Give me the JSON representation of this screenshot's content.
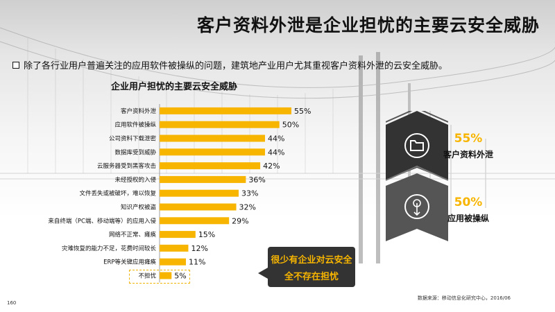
{
  "title": "客户资料外泄是企业担忧的主要云安全威胁",
  "subtitle": "除了各行业用户普遍关注的应用软件被操纵的问题，建筑地产业用户尤其重视客户资料外泄的云安全威胁。",
  "chart_data": {
    "type": "bar",
    "orientation": "horizontal",
    "title": "企业用户担忧的主要云安全威胁",
    "categories": [
      "客户资料外泄",
      "应用软件被操纵",
      "公司资料下载泄密",
      "数据库受到威胁",
      "云服务器受到黑客攻击",
      "未经授权的入侵",
      "文件丢失或被破坏，难以恢复",
      "知识产权被盗",
      "来自终端（PC端、移动端等）的应用入侵",
      "网络不正常、瘫痪",
      "灾难恢复的能力不足，花费时间较长",
      "ERP等关键应用瘫痪",
      "不担忧"
    ],
    "values": [
      55,
      50,
      44,
      44,
      42,
      36,
      33,
      32,
      29,
      15,
      12,
      11,
      5
    ],
    "value_labels": [
      "55%",
      "50%",
      "44%",
      "44%",
      "42%",
      "36%",
      "33%",
      "32%",
      "29%",
      "15%",
      "12%",
      "11%",
      "5%"
    ],
    "xlim": [
      0,
      55
    ],
    "bar_color": "#f7b500",
    "grid": false,
    "xlabel": "",
    "ylabel": ""
  },
  "callout": {
    "line1": "很少有企业对云安全",
    "line2": "全不存在担忧"
  },
  "stats": [
    {
      "pct": "55%",
      "label": "客户资料外泄",
      "icon": "folder-icon"
    },
    {
      "pct": "50%",
      "label": "应用被操纵",
      "icon": "touch-hand-icon"
    }
  ],
  "source": "数据来源：移动信息化研究中心，2016/06",
  "page_number": "160",
  "colors": {
    "accent": "#f7b500",
    "dark": "#333333"
  }
}
